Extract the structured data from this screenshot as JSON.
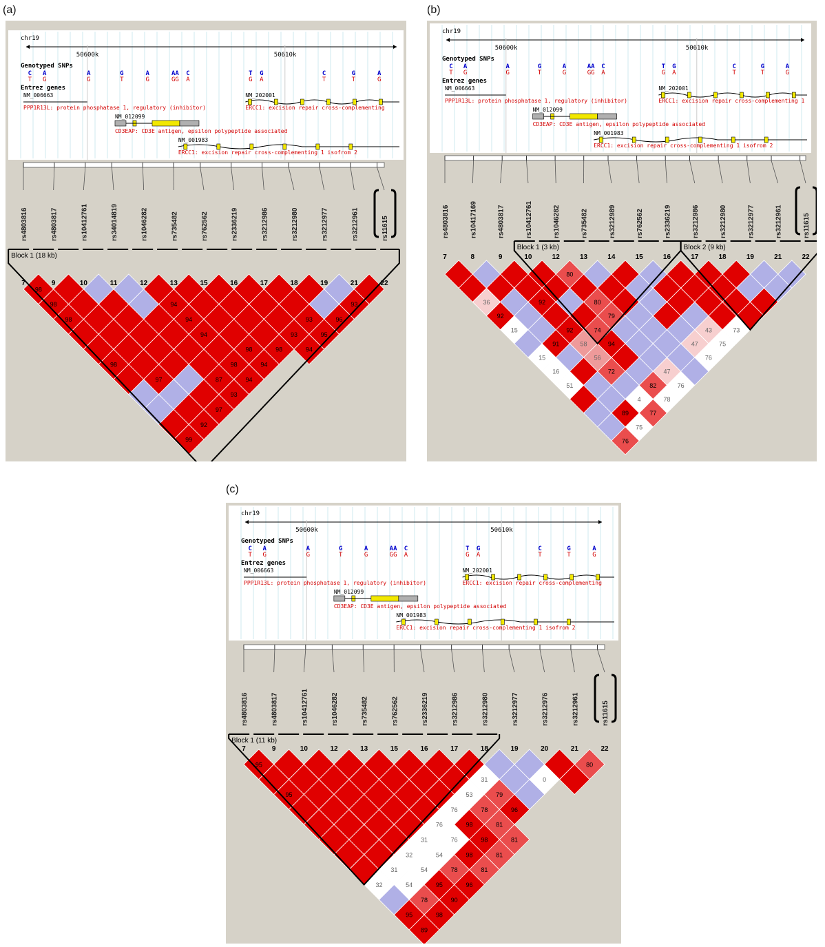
{
  "colors": {
    "bg": "#d6d2c8",
    "red": "#e00000",
    "blue": "#b0b0e6",
    "white": "#ffffff",
    "pink_light": "#f7cfcf",
    "pink_mid": "#ee9a9a",
    "red_mid": "#ea4d4d",
    "label_blue": "#0000cc",
    "label_red": "#d40000",
    "gene_yellow": "#f2e800",
    "gene_grey": "#b0b0b0"
  },
  "panels": [
    {
      "label": "(a)",
      "chr": "chr19",
      "tick_left": "50600k",
      "tick_right": "50610k",
      "genotyped_label": "Genotyped SNPs",
      "entrez_label": "Entrez genes",
      "allele_top": [
        "C",
        "A",
        "A",
        "G",
        "A",
        "AA",
        "C",
        "T",
        "G",
        "C",
        "G",
        "A"
      ],
      "allele_bot": [
        "T",
        "G",
        "G",
        "T",
        "G",
        "GG",
        "A",
        "G",
        "A",
        "T",
        "T",
        "G"
      ],
      "genes": {
        "nm1": "NM_006663",
        "ppp": "PPP1R13L: protein phosphatase 1, regulatory (inhibitor)",
        "nm2": "NM_202001",
        "ercc1a": "ERCC1: excision repair cross-complementing",
        "nm3": "NM_012099",
        "cd3": "CD3EAP: CD3E antigen, epsilon polypeptide associated",
        "nm4": "NM_001983",
        "ercc1b": "ERCC1: excision repair cross-complementing 1 isofrom 2"
      },
      "snps": [
        "rs4803816",
        "rs4803817",
        "rs10412761",
        "rs34014819",
        "rs1046282",
        "rs735482",
        "rs762562",
        "rs2336219",
        "rs3212986",
        "rs3212980",
        "rs3212977",
        "rs3212961",
        "rs11615"
      ],
      "indices": [
        "7",
        "9",
        "10",
        "11",
        "12",
        "13",
        "15",
        "16",
        "17",
        "18",
        "19",
        "21",
        "22"
      ],
      "blocks": [
        {
          "label": "Block 1 (18 kb)",
          "start": 0,
          "end": 12
        }
      ],
      "matrix": [
        [
          "R98",
          "R",
          "B",
          "B",
          "R",
          "R",
          "R",
          "R",
          "R",
          "R",
          "B",
          "R"
        ],
        [
          "R98",
          "R",
          "R",
          "B",
          "R94",
          "R",
          "R",
          "R",
          "R",
          "B",
          "R93"
        ],
        [
          "R98",
          "R",
          "R",
          "R",
          "R94",
          "R",
          "R",
          "R",
          "R93",
          "R96"
        ],
        [
          "R",
          "R",
          "R",
          "R",
          "R94",
          "R",
          "R",
          "R93",
          "R95"
        ],
        [
          "R",
          "R",
          "R",
          "R",
          "R",
          "R98",
          "R98",
          "R94"
        ],
        [
          "R98",
          "R",
          "R",
          "R",
          "R98",
          "R94"
        ],
        [
          "R",
          "R97",
          "B",
          "R87",
          "R94"
        ],
        [
          "B",
          "B",
          "R",
          "R93"
        ],
        [
          "B",
          "R",
          "R97"
        ],
        [
          "R",
          "R92"
        ],
        [
          "R99"
        ],
        [],
        []
      ]
    },
    {
      "label": "(b)",
      "chr": "chr19",
      "tick_left": "50600k",
      "tick_right": "50610k",
      "genotyped_label": "Genotyped SNPs",
      "entrez_label": "Entrez genes",
      "allele_top": [
        "C",
        "A",
        "A",
        "G",
        "A",
        "AA",
        "C",
        "T",
        "G",
        "C",
        "G",
        "A"
      ],
      "allele_bot": [
        "T",
        "G",
        "G",
        "T",
        "G",
        "GG",
        "A",
        "G",
        "A",
        "T",
        "T",
        "G"
      ],
      "genes": {
        "nm1": "NM_006663",
        "ppp": "PPP1R13L: protein phosphatase 1, regulatory (inhibitor)",
        "nm2": "NM_202001",
        "ercc1a": "ERCC1: excision repair cross-complementing 1",
        "nm3": "NM_012099",
        "cd3": "CD3EAP: CD3E antigen, epsilon polypeptide associated",
        "nm4": "NM_001983",
        "ercc1b": "ERCC1: excision repair cross-complementing 1 isofrom 2"
      },
      "snps": [
        "rs4803816",
        "rs10417169",
        "rs4803817",
        "rs10412761",
        "rs1046282",
        "rs735482",
        "rs3212989",
        "rs762562",
        "rs2336219",
        "rs3212986",
        "rs3212980",
        "rs3212977",
        "rs3212961",
        "rs11615"
      ],
      "indices": [
        "7",
        "8",
        "9",
        "10",
        "12",
        "13",
        "14",
        "15",
        "16",
        "17",
        "18",
        "19",
        "21",
        "22"
      ],
      "blocks": [
        {
          "label": "Block 1 (3 kb)",
          "start": 3,
          "end": 8
        },
        {
          "label": "Block 2 (9 kb)",
          "start": 9,
          "end": 13
        }
      ],
      "matrix": [
        [
          "R",
          "B",
          "R",
          "R",
          "R80",
          "B",
          "R",
          "B",
          "R",
          "R",
          "R",
          "B",
          "B"
        ],
        [
          "R",
          "R",
          "R",
          "R",
          "R",
          "R",
          "B",
          "R",
          "R",
          "R",
          "B",
          "B"
        ],
        [
          "P36",
          "B",
          "R92",
          "B",
          "R80",
          "R",
          "B",
          "R",
          "R",
          "R",
          "R"
        ],
        [
          "R92",
          "B",
          "R",
          "R",
          "R79",
          "B",
          "R",
          "B",
          "R",
          "R"
        ],
        [
          "W15",
          "B",
          "R92",
          "R74",
          "B",
          "B",
          "B",
          "P43",
          "W73"
        ],
        [
          "B",
          "R91",
          "P58",
          "R94",
          "B",
          "B",
          "P47",
          "W75"
        ],
        [
          "W15",
          "B",
          "P56",
          "R",
          "B",
          "B",
          "W76"
        ],
        [
          "W16",
          "R",
          "R72",
          "B",
          "P47",
          "B"
        ],
        [
          "W51",
          "B",
          "B",
          "R82",
          "W76"
        ],
        [
          "R",
          "B",
          "W4",
          "W78"
        ],
        [
          "B",
          "R89",
          "R77"
        ],
        [
          "B",
          "W75"
        ],
        [
          "R76"
        ],
        [
          "R78"
        ]
      ]
    },
    {
      "label": "(c)",
      "chr": "chr19",
      "tick_left": "50600k",
      "tick_right": "50610k",
      "genotyped_label": "Genotyped SNPs",
      "entrez_label": "Entrez genes",
      "allele_top": [
        "C",
        "A",
        "A",
        "G",
        "A",
        "AA",
        "C",
        "T",
        "G",
        "C",
        "G",
        "A"
      ],
      "allele_bot": [
        "T",
        "G",
        "G",
        "T",
        "G",
        "GG",
        "A",
        "G",
        "A",
        "T",
        "T",
        "G"
      ],
      "genes": {
        "nm1": "NM_006663",
        "ppp": "PPP1R13L: protein phosphatase 1, regulatory (inhibitor)",
        "nm2": "NM_202001",
        "ercc1a": "ERCC1: excision repair cross-complementing",
        "nm3": "NM_012099",
        "cd3": "CD3EAP: CD3E antigen, epsilon polypeptide associated",
        "nm4": "NM_001983",
        "ercc1b": "ERCC1: excision repair cross-complementing 1 isofrom 2"
      },
      "snps": [
        "rs4803816",
        "rs4803817",
        "rs10412761",
        "rs1046282",
        "rs735482",
        "rs762562",
        "rs2336219",
        "rs3212986",
        "rs3212980",
        "rs3212977",
        "rs3212976",
        "rs3212961",
        "rs11615"
      ],
      "indices": [
        "7",
        "9",
        "10",
        "12",
        "13",
        "15",
        "16",
        "17",
        "18",
        "19",
        "20",
        "21",
        "22"
      ],
      "blocks": [
        {
          "label": "Block 1 (11 kb)",
          "start": 0,
          "end": 8
        }
      ],
      "matrix": [
        [
          "R95",
          "R",
          "R",
          "R",
          "R",
          "R",
          "R",
          "R",
          "B",
          "B",
          "R",
          "R80"
        ],
        [
          "R",
          "R",
          "R",
          "R",
          "R",
          "R",
          "R",
          "W31",
          "B",
          "W0",
          "R"
        ],
        [
          "R95",
          "R",
          "R",
          "R",
          "R",
          "R",
          "W53",
          "R79",
          "B"
        ],
        [
          "R",
          "R",
          "R",
          "R",
          "R",
          "W76",
          "R78",
          "R96"
        ],
        [
          "R",
          "R",
          "R",
          "R",
          "W76",
          "R98",
          "R81"
        ],
        [
          "R",
          "R",
          "R",
          "W31",
          "W76",
          "R98",
          "R81"
        ],
        [
          "R",
          "R",
          "W32",
          "W54",
          "R98",
          "R81"
        ],
        [
          "R",
          "W31",
          "W54",
          "R78",
          "R81"
        ],
        [
          "W32",
          "W54",
          "R95",
          "R96"
        ],
        [
          "B",
          "R78",
          "R90"
        ],
        [
          "R95",
          "R98"
        ],
        [
          "R89"
        ],
        []
      ]
    }
  ]
}
